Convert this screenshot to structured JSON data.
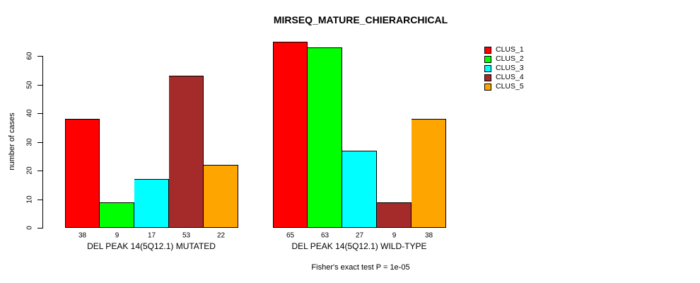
{
  "chart_data": {
    "type": "bar",
    "title": "MIRSEQ_MATURE_CHIERARCHICAL",
    "ylabel": "number of cases",
    "xlabel": "",
    "categories": [
      "DEL PEAK 14(5Q12.1) MUTATED",
      "DEL PEAK 14(5Q12.1) WILD-TYPE"
    ],
    "series": [
      {
        "name": "CLUS_1",
        "color": "#FF0000",
        "values": [
          38,
          65
        ]
      },
      {
        "name": "CLUS_2",
        "color": "#00FF00",
        "values": [
          9,
          63
        ]
      },
      {
        "name": "CLUS_3",
        "color": "#00FFFF",
        "values": [
          17,
          27
        ]
      },
      {
        "name": "CLUS_4",
        "color": "#A52A2A",
        "values": [
          53,
          9
        ]
      },
      {
        "name": "CLUS_5",
        "color": "#FFA500",
        "values": [
          22,
          38
        ]
      }
    ],
    "ylim": [
      0,
      65
    ],
    "yticks": [
      0,
      10,
      20,
      30,
      40,
      50,
      60
    ],
    "grid": false,
    "legend_position": "right",
    "bar_value_labels": true,
    "annotation": "Fisher's exact test P = 1e-05"
  }
}
